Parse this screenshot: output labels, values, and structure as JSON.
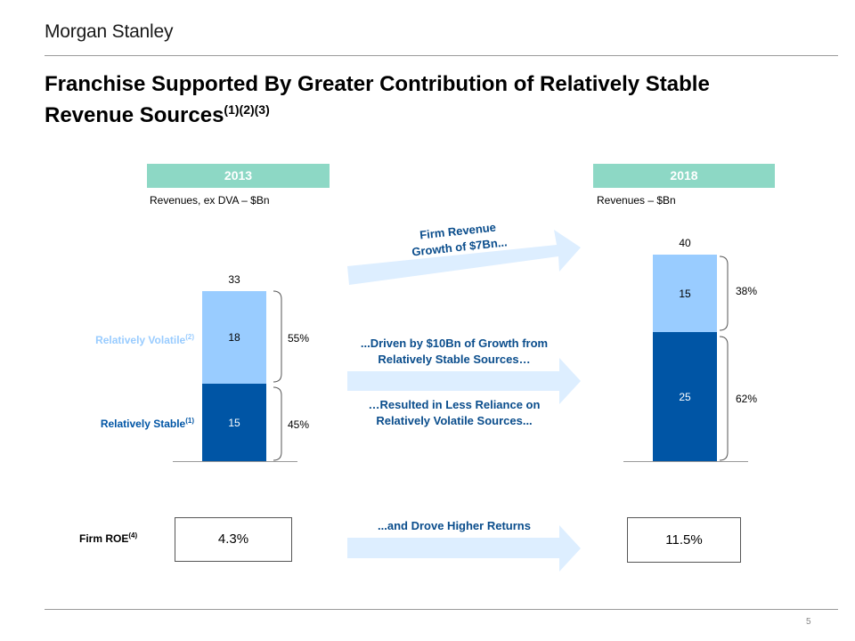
{
  "header": {
    "logo_text": "Morgan Stanley",
    "title_line1": "Franchise Supported By Greater Contribution of Relatively Stable",
    "title_line2": "Revenue Sources",
    "title_refs": "(1)(2)(3)"
  },
  "chart_data": [
    {
      "type": "bar",
      "title": "2013",
      "subtitle": "Revenues,  ex DVA – $Bn",
      "categories": [
        "2013"
      ],
      "series": [
        {
          "name": "Relatively Stable",
          "values": [
            15
          ],
          "share": "45%"
        },
        {
          "name": "Relatively Volatile",
          "values": [
            18
          ],
          "share": "55%"
        }
      ],
      "total": "33",
      "stacked": true
    },
    {
      "type": "bar",
      "title": "2018",
      "subtitle": "Revenues  – $Bn",
      "categories": [
        "2018"
      ],
      "series": [
        {
          "name": "Relatively Stable",
          "values": [
            25
          ],
          "share": "62%"
        },
        {
          "name": "Relatively Volatile",
          "values": [
            15
          ],
          "share": "38%"
        }
      ],
      "total": "40",
      "stacked": true
    }
  ],
  "labels": {
    "volatile": "Relatively Volatile",
    "volatile_ref": "(2)",
    "stable": "Relatively Stable",
    "stable_ref": "(1)"
  },
  "callouts": {
    "growth_line1": "Firm Revenue",
    "growth_line2": "Growth of $7Bn...",
    "driven_line1": "...Driven by $10Bn of Growth from",
    "driven_line2": "Relatively Stable Sources…",
    "resulted_line1": "…Resulted in Less Reliance on",
    "resulted_line2": "Relatively Volatile Sources...",
    "returns": "...and Drove Higher Returns"
  },
  "roe": {
    "label": "Firm ROE",
    "label_ref": "(4)",
    "value_2013": "4.3%",
    "value_2018": "11.5%"
  },
  "footer": {
    "page_number": "5"
  },
  "colors": {
    "year_header": "#8dd8c5",
    "volatile": "#99ccff",
    "stable": "#0055a5",
    "arrow": "#ddeeff",
    "callout_text": "#0a4d8c"
  }
}
